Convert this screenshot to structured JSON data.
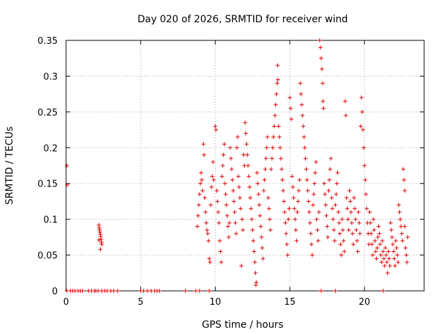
{
  "chart_data": {
    "type": "scatter",
    "title": "Day 020 of 2026, SRMTID for receiver wind",
    "xlabel": "GPS time / hours",
    "ylabel": "SRMTID / TECUs",
    "xlim": [
      0,
      24
    ],
    "ylim": [
      0,
      0.35
    ],
    "xticks": [
      0,
      5,
      10,
      15,
      20
    ],
    "yticks": [
      0,
      0.05,
      0.1,
      0.15,
      0.2,
      0.25,
      0.3,
      0.35
    ],
    "xtick_labels": [
      "0",
      "5",
      "10",
      "15",
      "20"
    ],
    "ytick_labels": [
      "0",
      "0.05",
      "0.1",
      "0.15",
      "0.2",
      "0.25",
      "0.3",
      "0.35"
    ],
    "grid": true,
    "marker": "+",
    "series_color": "#e00000",
    "series": [
      {
        "name": "SRMTID",
        "points": [
          [
            0.05,
            0.175
          ],
          [
            0.08,
            0.148
          ],
          [
            2.2,
            0.092
          ],
          [
            2.22,
            0.088
          ],
          [
            2.25,
            0.085
          ],
          [
            2.27,
            0.082
          ],
          [
            2.3,
            0.079
          ],
          [
            2.32,
            0.076
          ],
          [
            2.35,
            0.072
          ],
          [
            2.37,
            0.068
          ],
          [
            2.3,
            0.058
          ],
          [
            2.4,
            0.065
          ],
          [
            2.2,
            0.071
          ],
          [
            8.8,
            0.09
          ],
          [
            8.85,
            0.105
          ],
          [
            8.9,
            0.12
          ],
          [
            8.95,
            0.135
          ],
          [
            9.0,
            0.15
          ],
          [
            9.05,
            0.165
          ],
          [
            9.1,
            0.155
          ],
          [
            9.15,
            0.14
          ],
          [
            9.2,
            0.205
          ],
          [
            9.25,
            0.19
          ],
          [
            9.3,
            0.13
          ],
          [
            9.35,
            0.11
          ],
          [
            9.4,
            0.095
          ],
          [
            9.45,
            0.085
          ],
          [
            9.5,
            0.08
          ],
          [
            9.55,
            0.07
          ],
          [
            9.6,
            0.045
          ],
          [
            9.65,
            0.04
          ],
          [
            9.7,
            0.12
          ],
          [
            9.75,
            0.145
          ],
          [
            9.8,
            0.16
          ],
          [
            9.85,
            0.18
          ],
          [
            9.9,
            0.155
          ],
          [
            10.0,
            0.23
          ],
          [
            10.05,
            0.225
          ],
          [
            10.1,
            0.14
          ],
          [
            10.15,
            0.125
          ],
          [
            10.2,
            0.11
          ],
          [
            10.25,
            0.095
          ],
          [
            10.3,
            0.07
          ],
          [
            10.35,
            0.055
          ],
          [
            10.4,
            0.04
          ],
          [
            10.45,
            0.16
          ],
          [
            10.5,
            0.175
          ],
          [
            10.55,
            0.19
          ],
          [
            10.6,
            0.205
          ],
          [
            10.65,
            0.15
          ],
          [
            10.7,
            0.135
          ],
          [
            10.75,
            0.12
          ],
          [
            10.8,
            0.105
          ],
          [
            10.85,
            0.09
          ],
          [
            10.9,
            0.075
          ],
          [
            10.95,
            0.095
          ],
          [
            11.0,
            0.2
          ],
          [
            11.05,
            0.185
          ],
          [
            11.1,
            0.17
          ],
          [
            11.15,
            0.155
          ],
          [
            11.2,
            0.14
          ],
          [
            11.25,
            0.125
          ],
          [
            11.3,
            0.11
          ],
          [
            11.35,
            0.095
          ],
          [
            11.4,
            0.08
          ],
          [
            11.45,
            0.2
          ],
          [
            11.5,
            0.215
          ],
          [
            11.55,
            0.16
          ],
          [
            11.6,
            0.145
          ],
          [
            11.65,
            0.13
          ],
          [
            11.7,
            0.115
          ],
          [
            11.75,
            0.035
          ],
          [
            11.8,
            0.1
          ],
          [
            11.85,
            0.085
          ],
          [
            11.9,
            0.19
          ],
          [
            11.95,
            0.175
          ],
          [
            12.0,
            0.235
          ],
          [
            12.05,
            0.22
          ],
          [
            12.1,
            0.205
          ],
          [
            12.15,
            0.19
          ],
          [
            12.2,
            0.175
          ],
          [
            12.25,
            0.16
          ],
          [
            12.3,
            0.145
          ],
          [
            12.35,
            0.13
          ],
          [
            12.4,
            0.115
          ],
          [
            12.45,
            0.1
          ],
          [
            12.5,
            0.085
          ],
          [
            12.55,
            0.07
          ],
          [
            12.6,
            0.055
          ],
          [
            12.65,
            0.04
          ],
          [
            12.7,
            0.025
          ],
          [
            12.72,
            0.008
          ],
          [
            12.75,
            0.012
          ],
          [
            12.8,
            0.165
          ],
          [
            12.85,
            0.15
          ],
          [
            12.9,
            0.135
          ],
          [
            12.95,
            0.12
          ],
          [
            13.0,
            0.105
          ],
          [
            13.05,
            0.09
          ],
          [
            13.1,
            0.075
          ],
          [
            13.15,
            0.06
          ],
          [
            13.2,
            0.045
          ],
          [
            13.25,
            0.14
          ],
          [
            13.3,
            0.155
          ],
          [
            13.35,
            0.17
          ],
          [
            13.4,
            0.185
          ],
          [
            13.45,
            0.2
          ],
          [
            13.5,
            0.215
          ],
          [
            13.55,
            0.13
          ],
          [
            13.6,
            0.115
          ],
          [
            13.65,
            0.1
          ],
          [
            13.7,
            0.085
          ],
          [
            13.75,
            0.17
          ],
          [
            13.8,
            0.185
          ],
          [
            13.85,
            0.2
          ],
          [
            13.9,
            0.215
          ],
          [
            13.95,
            0.23
          ],
          [
            14.0,
            0.245
          ],
          [
            14.05,
            0.26
          ],
          [
            14.1,
            0.275
          ],
          [
            14.15,
            0.29
          ],
          [
            14.18,
            0.315
          ],
          [
            14.2,
            0.295
          ],
          [
            14.25,
            0.23
          ],
          [
            14.3,
            0.215
          ],
          [
            14.35,
            0.2
          ],
          [
            14.4,
            0.185
          ],
          [
            14.45,
            0.17
          ],
          [
            14.5,
            0.155
          ],
          [
            14.55,
            0.14
          ],
          [
            14.6,
            0.125
          ],
          [
            14.65,
            0.11
          ],
          [
            14.7,
            0.095
          ],
          [
            14.75,
            0.08
          ],
          [
            14.8,
            0.065
          ],
          [
            14.85,
            0.05
          ],
          [
            14.9,
            0.1
          ],
          [
            14.95,
            0.115
          ],
          [
            15.0,
            0.27
          ],
          [
            15.05,
            0.255
          ],
          [
            15.1,
            0.24
          ],
          [
            15.15,
            0.16
          ],
          [
            15.2,
            0.145
          ],
          [
            15.25,
            0.13
          ],
          [
            15.3,
            0.115
          ],
          [
            15.35,
            0.1
          ],
          [
            15.4,
            0.085
          ],
          [
            15.45,
            0.07
          ],
          [
            15.5,
            0.11
          ],
          [
            15.55,
            0.125
          ],
          [
            15.6,
            0.14
          ],
          [
            15.65,
            0.155
          ],
          [
            15.7,
            0.29
          ],
          [
            15.75,
            0.275
          ],
          [
            15.8,
            0.26
          ],
          [
            15.85,
            0.245
          ],
          [
            15.9,
            0.23
          ],
          [
            15.95,
            0.215
          ],
          [
            16.0,
            0.2
          ],
          [
            16.05,
            0.185
          ],
          [
            16.1,
            0.17
          ],
          [
            16.15,
            0.155
          ],
          [
            16.2,
            0.14
          ],
          [
            16.25,
            0.125
          ],
          [
            16.3,
            0.11
          ],
          [
            16.35,
            0.095
          ],
          [
            16.4,
            0.08
          ],
          [
            16.45,
            0.065
          ],
          [
            16.5,
            0.05
          ],
          [
            16.55,
            0.12
          ],
          [
            16.6,
            0.135
          ],
          [
            16.65,
            0.15
          ],
          [
            16.7,
            0.165
          ],
          [
            16.75,
            0.18
          ],
          [
            16.8,
            0.1
          ],
          [
            16.85,
            0.085
          ],
          [
            16.9,
            0.07
          ],
          [
            16.95,
            0.11
          ],
          [
            17.0,
            0.35
          ],
          [
            17.05,
            0.34
          ],
          [
            17.1,
            0.325
          ],
          [
            17.15,
            0.31
          ],
          [
            17.2,
            0.29
          ],
          [
            17.22,
            0.265
          ],
          [
            17.25,
            0.255
          ],
          [
            17.3,
            0.15
          ],
          [
            17.35,
            0.135
          ],
          [
            17.4,
            0.12
          ],
          [
            17.45,
            0.105
          ],
          [
            17.5,
            0.09
          ],
          [
            17.55,
            0.075
          ],
          [
            17.6,
            0.14
          ],
          [
            17.65,
            0.155
          ],
          [
            17.7,
            0.17
          ],
          [
            17.75,
            0.185
          ],
          [
            17.8,
            0.13
          ],
          [
            17.85,
            0.115
          ],
          [
            17.9,
            0.1
          ],
          [
            17.95,
            0.085
          ],
          [
            18.0,
            0.07
          ],
          [
            18.05,
            0.12
          ],
          [
            18.1,
            0.135
          ],
          [
            18.15,
            0.15
          ],
          [
            18.2,
            0.165
          ],
          [
            18.25,
            0.11
          ],
          [
            18.3,
            0.095
          ],
          [
            18.35,
            0.08
          ],
          [
            18.4,
            0.065
          ],
          [
            18.45,
            0.05
          ],
          [
            18.5,
            0.1
          ],
          [
            18.55,
            0.085
          ],
          [
            18.6,
            0.07
          ],
          [
            18.65,
            0.055
          ],
          [
            18.7,
            0.265
          ],
          [
            18.75,
            0.245
          ],
          [
            18.8,
            0.13
          ],
          [
            18.85,
            0.115
          ],
          [
            18.9,
            0.1
          ],
          [
            18.95,
            0.085
          ],
          [
            19.0,
            0.14
          ],
          [
            19.05,
            0.125
          ],
          [
            19.1,
            0.11
          ],
          [
            19.15,
            0.095
          ],
          [
            19.2,
            0.08
          ],
          [
            19.25,
            0.065
          ],
          [
            19.3,
            0.13
          ],
          [
            19.35,
            0.115
          ],
          [
            19.4,
            0.1
          ],
          [
            19.45,
            0.085
          ],
          [
            19.5,
            0.07
          ],
          [
            19.55,
            0.055
          ],
          [
            19.6,
            0.11
          ],
          [
            19.65,
            0.095
          ],
          [
            19.7,
            0.08
          ],
          [
            19.75,
            0.23
          ],
          [
            19.8,
            0.27
          ],
          [
            19.85,
            0.25
          ],
          [
            19.9,
            0.225
          ],
          [
            19.95,
            0.2
          ],
          [
            20.0,
            0.175
          ],
          [
            20.05,
            0.155
          ],
          [
            20.1,
            0.135
          ],
          [
            20.15,
            0.115
          ],
          [
            20.2,
            0.095
          ],
          [
            20.25,
            0.08
          ],
          [
            20.3,
            0.065
          ],
          [
            20.35,
            0.11
          ],
          [
            20.4,
            0.095
          ],
          [
            20.45,
            0.08
          ],
          [
            20.5,
            0.065
          ],
          [
            20.55,
            0.05
          ],
          [
            20.6,
            0.1
          ],
          [
            20.65,
            0.085
          ],
          [
            20.7,
            0.07
          ],
          [
            20.75,
            0.055
          ],
          [
            20.8,
            0.045
          ],
          [
            20.85,
            0.06
          ],
          [
            20.9,
            0.075
          ],
          [
            20.95,
            0.09
          ],
          [
            21.0,
            0.08
          ],
          [
            21.05,
            0.065
          ],
          [
            21.1,
            0.05
          ],
          [
            21.15,
            0.04
          ],
          [
            21.2,
            0.07
          ],
          [
            21.25,
            0.055
          ],
          [
            21.3,
            0.045
          ],
          [
            21.35,
            0.035
          ],
          [
            21.4,
            0.06
          ],
          [
            21.45,
            0.05
          ],
          [
            21.5,
            0.04
          ],
          [
            21.55,
            0.025
          ],
          [
            21.6,
            0.055
          ],
          [
            21.65,
            0.045
          ],
          [
            21.7,
            0.035
          ],
          [
            21.75,
            0.095
          ],
          [
            21.8,
            0.085
          ],
          [
            21.85,
            0.075
          ],
          [
            21.9,
            0.065
          ],
          [
            21.95,
            0.055
          ],
          [
            22.0,
            0.045
          ],
          [
            22.05,
            0.035
          ],
          [
            22.1,
            0.07
          ],
          [
            22.15,
            0.06
          ],
          [
            22.2,
            0.05
          ],
          [
            22.25,
            0.04
          ],
          [
            22.3,
            0.12
          ],
          [
            22.35,
            0.11
          ],
          [
            22.4,
            0.1
          ],
          [
            22.45,
            0.09
          ],
          [
            22.5,
            0.08
          ],
          [
            22.55,
            0.07
          ],
          [
            22.6,
            0.17
          ],
          [
            22.65,
            0.155
          ],
          [
            22.7,
            0.14
          ],
          [
            22.75,
            0.06
          ],
          [
            22.8,
            0.05
          ],
          [
            22.85,
            0.04
          ],
          [
            22.9,
            0.075
          ],
          [
            22.7,
            0.09
          ]
        ],
        "zero_points": [
          0.05,
          0.3,
          0.45,
          0.6,
          0.8,
          0.95,
          1.1,
          1.5,
          1.7,
          1.9,
          2.0,
          2.15,
          2.4,
          2.6,
          2.75,
          3.0,
          3.2,
          3.45,
          5.0,
          5.2,
          5.45,
          5.7,
          5.95,
          6.1,
          6.25,
          8.0,
          8.7,
          8.95,
          9.6,
          17.1,
          18.05,
          21.25
        ]
      }
    ]
  }
}
